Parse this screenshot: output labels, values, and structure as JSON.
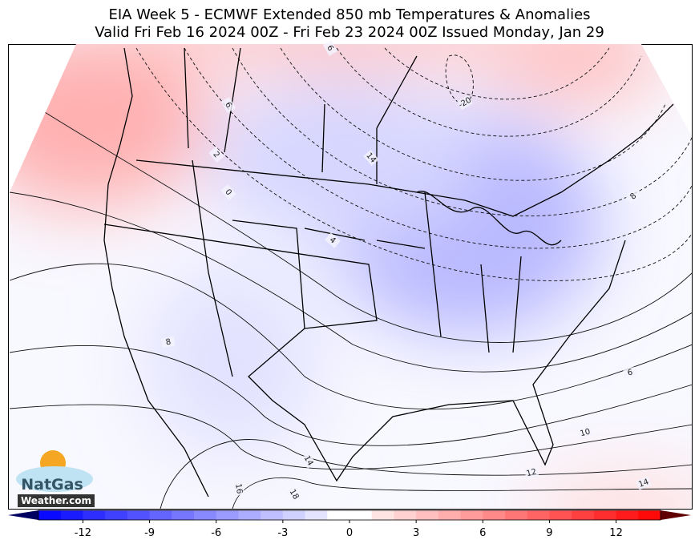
{
  "title": {
    "line1": "EIA Week 5 - ECMWF Extended 850 mb Temperatures & Anomalies",
    "line2": "Valid Fri Feb 16 2024 00Z - Fri Feb 23 2024 00Z   Issued Monday, Jan 29"
  },
  "map": {
    "contour_labels": [
      "6",
      "6",
      "-20",
      "14",
      "2",
      "0",
      "4",
      "8",
      "8",
      "6",
      "10",
      "12",
      "14",
      "14",
      "16",
      "18"
    ]
  },
  "colorbar": {
    "lim": [
      -14,
      14
    ],
    "ticks": [
      -12,
      -9,
      -6,
      -3,
      0,
      3,
      6,
      9,
      12
    ]
  },
  "logo": {
    "name": "NatGas",
    "site": "Weather.com"
  }
}
